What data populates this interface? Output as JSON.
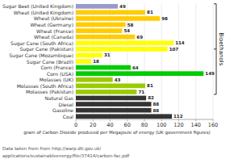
{
  "chart_data": {
    "type": "bar",
    "orientation": "horizontal",
    "categories": [
      "Sugar Beet (United Kingdom)",
      "Wheat (United Kingdom)",
      "Wheat (Ukraine)",
      "Wheat (Germany)",
      "Wheat (France)",
      "Wheat (Canada)",
      "Sugar Cane (South Africa)",
      "Sugar Cane (Pakistan)",
      "Sugar Cane (Mozambique)",
      "Sugar Cane (Brazil)",
      "Corn (France)",
      "Corn (USA)",
      "Molasses (UK)",
      "Molasses (South Africa)",
      "Molasses (Pakistan)",
      "Natural Gas",
      "Diesel",
      "Gasoline",
      "Coal"
    ],
    "values": [
      49,
      81,
      98,
      58,
      54,
      69,
      114,
      107,
      31,
      18,
      64,
      149,
      43,
      81,
      71,
      82,
      88,
      88,
      112
    ],
    "colors": [
      "#9999cc",
      "#ffcc00",
      "#ffcc00",
      "#ffcc00",
      "#ffcc00",
      "#ffcc00",
      "#ffff00",
      "#ffff00",
      "#ffff00",
      "#ffff00",
      "#00cc00",
      "#00cc00",
      "#99cc00",
      "#99cc00",
      "#99cc00",
      "#333333",
      "#333333",
      "#333333",
      "#333333"
    ],
    "data_labels": true,
    "xlabel": "gram of Carbon Dioxide produced per Megajoule of energy (UK government figures)",
    "xlim": [
      0,
      160
    ],
    "xticks": [
      0,
      20,
      40,
      60,
      80,
      100,
      120,
      140,
      160
    ],
    "grid": true,
    "annotations": [
      {
        "text": "Bioethanols",
        "from": "Sugar Beet (United Kingdom)",
        "to": "Molasses (Pakistan)"
      },
      {
        "text": "Data taken from from http://warp.dti.gov.uk/"
      },
      {
        "text": "applications/sustainableenergy/file/37414/carbon-fac.pdf"
      }
    ]
  }
}
